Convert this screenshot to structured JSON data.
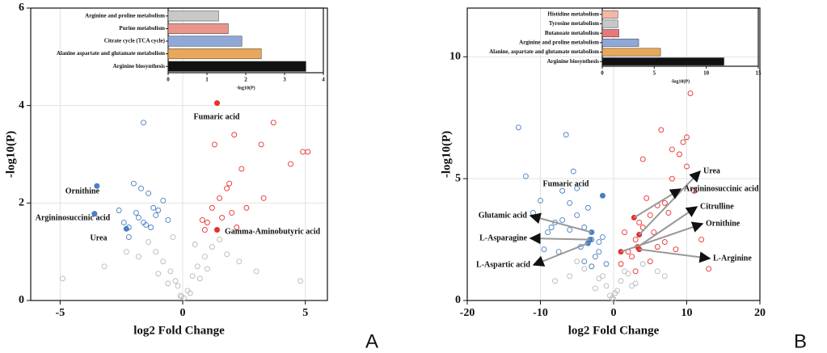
{
  "chart_data": [
    {
      "type": "scatter",
      "panel": "A",
      "x_label": "log2 Fold Change",
      "y_label": "-log10(P)",
      "xlim": [
        -6.2,
        5.9
      ],
      "xticks": [
        -5,
        0,
        5
      ],
      "ylim": [
        0,
        6
      ],
      "yticks": [
        0,
        2,
        4,
        6
      ],
      "grid": true,
      "series": [
        {
          "name": "ns",
          "color": "#b8b8b8",
          "x": [
            -0.1,
            0.2,
            -0.3,
            0.4,
            -0.5,
            0.6,
            -0.8,
            0.9,
            -1.1,
            1.2,
            -1.4,
            1.5,
            -0.2,
            0.3,
            -0.6,
            0.7,
            -1.0,
            1.0,
            -1.8,
            1.8,
            -2.3,
            2.3,
            -3.2,
            3.0,
            -4.9,
            4.8,
            0.05,
            -0.05,
            0.5,
            -0.4
          ],
          "values": [
            0.1,
            0.2,
            0.4,
            0.5,
            0.6,
            0.7,
            0.8,
            0.9,
            1.0,
            1.1,
            1.2,
            1.25,
            0.3,
            0.15,
            0.35,
            0.45,
            0.55,
            0.65,
            0.9,
            0.95,
            1.0,
            0.8,
            0.7,
            0.6,
            0.45,
            0.4,
            0.05,
            0.08,
            1.15,
            1.3
          ]
        },
        {
          "name": "up",
          "color": "#e8302c",
          "x": [
            1.0,
            1.2,
            1.5,
            1.6,
            1.8,
            2.0,
            2.2,
            2.4,
            0.8,
            1.3,
            1.9,
            2.6,
            3.3,
            3.2,
            3.7,
            4.4,
            4.9,
            5.1,
            0.9,
            2.1
          ],
          "values": [
            1.6,
            1.9,
            2.1,
            1.7,
            2.3,
            1.8,
            1.5,
            2.7,
            1.65,
            3.2,
            2.4,
            1.9,
            2.1,
            3.2,
            3.65,
            2.8,
            3.05,
            3.05,
            1.45,
            3.4
          ]
        },
        {
          "name": "down",
          "color": "#4a7fc1",
          "x": [
            -1.6,
            -2.0,
            -1.4,
            -1.2,
            -1.8,
            -0.8,
            -2.2,
            -2.2,
            -1.0,
            -1.5,
            -1.9,
            -1.7,
            -2.4,
            -0.6,
            -1.3,
            -1.1,
            -2.6,
            -1.6
          ],
          "values": [
            3.65,
            2.4,
            2.2,
            1.9,
            1.7,
            2.05,
            1.5,
            1.3,
            1.85,
            1.55,
            1.8,
            2.3,
            1.6,
            1.65,
            1.5,
            1.75,
            1.85,
            1.6
          ]
        }
      ],
      "annotations": [
        {
          "text": "Fumaric acid",
          "x": 1.4,
          "y": 4.05,
          "color": "#e8302c"
        },
        {
          "text": "Ornithine",
          "x": -3.5,
          "y": 2.35,
          "color": "#4a7fc1"
        },
        {
          "text": "Argininosuccinic acid",
          "x": -3.6,
          "y": 1.78,
          "color": "#4a7fc1"
        },
        {
          "text": "Urea",
          "x": -2.3,
          "y": 1.47,
          "color": "#4a7fc1"
        },
        {
          "text": "Gamma-Aminobutyric acid",
          "x": 1.4,
          "y": 1.45,
          "color": "#e8302c"
        }
      ]
    },
    {
      "type": "bar",
      "horizontal": true,
      "x_label": "-log10(P)",
      "xlim": [
        0,
        4
      ],
      "xticks": [
        0,
        1,
        2,
        3,
        4
      ],
      "categories": [
        "Arginine and proline metabolism",
        "Purine metabolism",
        "Citrate cycle (TCA cycle)",
        "Alanine aspartate and glutamate metabolism",
        "Arginine biosynthesis"
      ],
      "values": [
        1.3,
        1.55,
        1.9,
        2.4,
        3.55
      ],
      "colors": [
        "#c8c8c8",
        "#e8968c",
        "#8fa8d8",
        "#e8a85a",
        "#111111"
      ]
    },
    {
      "type": "scatter",
      "panel": "B",
      "x_label": "log2 Fold Change",
      "y_label": "-log10(P)",
      "xlim": [
        -20,
        20
      ],
      "xticks": [
        -20,
        -10,
        0,
        10,
        20
      ],
      "ylim": [
        0,
        12
      ],
      "yticks": [
        0,
        5,
        10
      ],
      "grid": true,
      "series": [
        {
          "name": "ns",
          "color": "#b8b8b8",
          "x": [
            -0.5,
            0.5,
            -1,
            1,
            -1.5,
            1.5,
            -2,
            2,
            -3,
            3,
            -4,
            4,
            -0.2,
            0.2,
            -6,
            6,
            -5,
            0,
            -2.5,
            2.5,
            -8,
            7
          ],
          "values": [
            0.2,
            0.4,
            0.6,
            0.8,
            1.0,
            1.2,
            0.9,
            1.1,
            1.4,
            0.7,
            1.3,
            1.5,
            0.1,
            0.3,
            1.0,
            1.2,
            1.6,
            0.05,
            0.5,
            0.6,
            0.8,
            1.0
          ]
        },
        {
          "name": "up",
          "color": "#e8302c",
          "x": [
            1,
            2,
            3,
            4,
            5,
            6,
            7,
            8,
            9,
            10,
            11,
            12,
            2.5,
            3.5,
            4.5,
            5.5,
            6.5,
            7.5,
            8.5,
            9.5,
            10.5,
            1.5,
            4,
            6,
            8,
            10,
            13,
            3,
            5,
            7
          ],
          "values": [
            1.5,
            2,
            2.5,
            3,
            3.5,
            2.2,
            4,
            5,
            6,
            5.5,
            4.5,
            2.5,
            1.8,
            3.2,
            4.2,
            2.8,
            7,
            3.6,
            2.1,
            6.5,
            8.5,
            2.8,
            5.8,
            3.9,
            6.2,
            6.7,
            1.3,
            1.2,
            1.6,
            2.4
          ]
        },
        {
          "name": "down",
          "color": "#4a7fc1",
          "x": [
            -1,
            -2,
            -3,
            -4,
            -5,
            -6,
            -7,
            -8,
            -9,
            -10,
            -11,
            -12,
            -13,
            -2.5,
            -3.5,
            -4.5,
            -5.5,
            -6.5,
            -7.5,
            -8.5,
            -1.5,
            -4,
            -6,
            -9.5,
            -3,
            -5,
            -7,
            -2
          ],
          "values": [
            1.5,
            2,
            2.5,
            3,
            3.5,
            4,
            4.5,
            3.2,
            2.8,
            4.1,
            3.6,
            5.1,
            7.1,
            1.8,
            3.8,
            2.2,
            5.3,
            6.8,
            2.0,
            3.0,
            2.6,
            1.6,
            2.9,
            2.1,
            1.4,
            4.6,
            3.3,
            2.4
          ]
        }
      ],
      "annotations": [
        {
          "text": "Fumaric acid",
          "x": -1.5,
          "y": 4.3,
          "color": "#4a7fc1"
        },
        {
          "text": "Glutamic acid",
          "x": -3,
          "y": 2.8,
          "color": "#4a7fc1"
        },
        {
          "text": "L-Asparagine",
          "x": -3.2,
          "y": 2.5,
          "color": "#4a7fc1"
        },
        {
          "text": "L-Aspartic acid",
          "x": -3.5,
          "y": 2.35,
          "color": "#4a7fc1"
        },
        {
          "text": "Urea",
          "x": 3.5,
          "y": 2.7,
          "color": "#e8302c"
        },
        {
          "text": "Argininosuccinic acid",
          "x": 2.8,
          "y": 3.4,
          "color": "#e8302c"
        },
        {
          "text": "Citrulline",
          "x": 3.3,
          "y": 2.2,
          "color": "#e8302c"
        },
        {
          "text": "Ornithine",
          "x": 1,
          "y": 2.0,
          "color": "#e8302c"
        },
        {
          "text": "L-Arginine",
          "x": 3.5,
          "y": 2.1,
          "color": "#e8302c"
        }
      ]
    },
    {
      "type": "bar",
      "horizontal": true,
      "x_label": "-log10(P)",
      "xlim": [
        0,
        15
      ],
      "xticks": [
        0,
        5,
        10,
        15
      ],
      "categories": [
        "Histidine metabolism",
        "Tyrosine metabolism",
        "Butanoate metabolism",
        "Arginine and proline metabolism",
        "Alanine, aspartate and glutamate metabolism",
        "Arginine biosynthesis"
      ],
      "values": [
        1.5,
        1.5,
        1.6,
        3.5,
        5.6,
        11.7
      ],
      "colors": [
        "#f4b8a8",
        "#c8c8c8",
        "#e8787a",
        "#8fa8d8",
        "#e8a85a",
        "#111111"
      ]
    }
  ]
}
